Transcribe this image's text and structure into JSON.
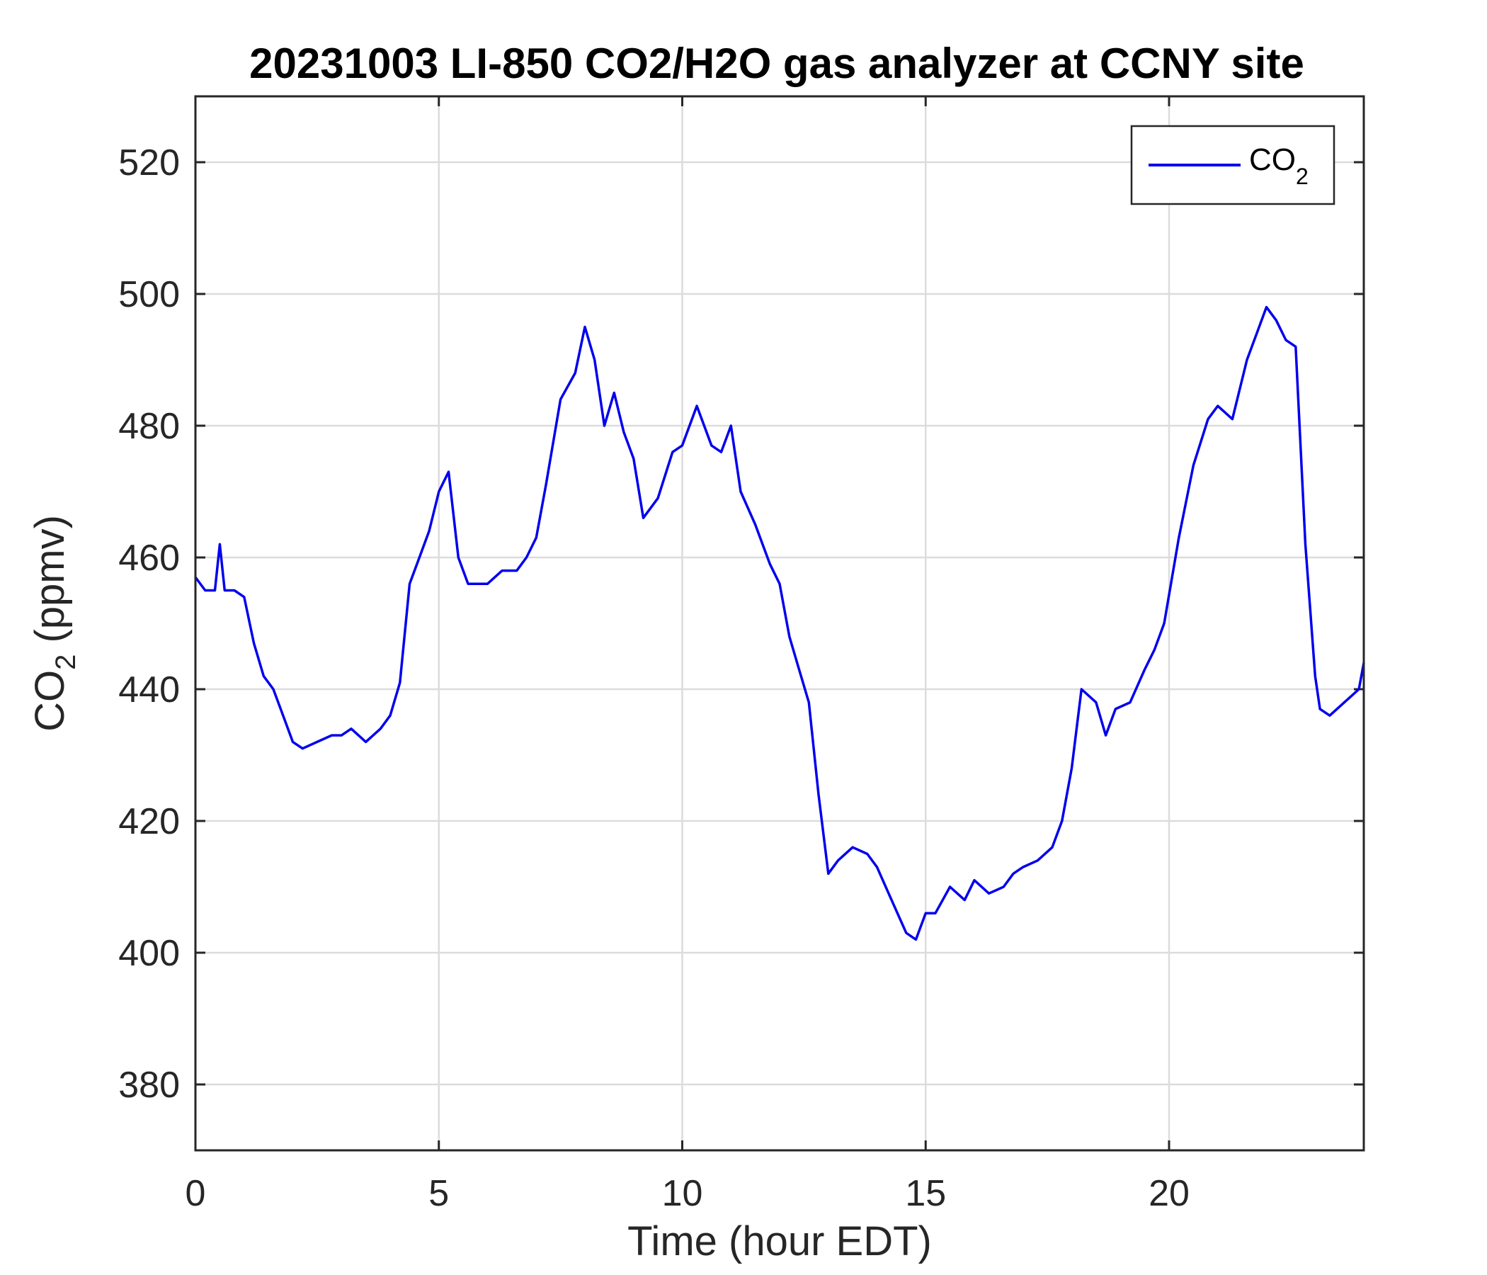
{
  "chart_data": {
    "type": "line",
    "title": "20231003 LI-850 CO2/H2O gas analyzer at CCNY site",
    "xlabel": "Time (hour EDT)",
    "ylabel_main": "CO",
    "ylabel_sub": "2",
    "ylabel_tail": " (ppmv)",
    "xlim": [
      0,
      24
    ],
    "ylim": [
      370,
      530
    ],
    "xticks": [
      0,
      5,
      10,
      15,
      20
    ],
    "yticks": [
      380,
      400,
      420,
      440,
      460,
      480,
      500,
      520
    ],
    "grid": true,
    "legend_position": "top-right",
    "legend": {
      "main": "CO",
      "sub": "2"
    },
    "series": [
      {
        "name": "CO2",
        "color": "#0000ee",
        "x": [
          0,
          0.2,
          0.4,
          0.5,
          0.6,
          0.8,
          1.0,
          1.2,
          1.4,
          1.6,
          1.8,
          2.0,
          2.2,
          2.5,
          2.8,
          3.0,
          3.2,
          3.5,
          3.8,
          4.0,
          4.2,
          4.4,
          4.6,
          4.8,
          5.0,
          5.2,
          5.4,
          5.6,
          5.8,
          6.0,
          6.3,
          6.6,
          6.8,
          7.0,
          7.2,
          7.5,
          7.8,
          8.0,
          8.2,
          8.4,
          8.6,
          8.8,
          9.0,
          9.2,
          9.5,
          9.8,
          10.0,
          10.3,
          10.6,
          10.8,
          11.0,
          11.2,
          11.5,
          11.8,
          12.0,
          12.2,
          12.4,
          12.6,
          12.8,
          13.0,
          13.2,
          13.5,
          13.8,
          14.0,
          14.3,
          14.6,
          14.8,
          15.0,
          15.2,
          15.5,
          15.8,
          16.0,
          16.3,
          16.6,
          16.8,
          17.0,
          17.3,
          17.6,
          17.8,
          18.0,
          18.2,
          18.5,
          18.7,
          18.9,
          19.2,
          19.5,
          19.7,
          19.9,
          20.2,
          20.5,
          20.8,
          21.0,
          21.3,
          21.6,
          21.8,
          22.0,
          22.2,
          22.4,
          22.6,
          22.8,
          22.9,
          23.0,
          23.1,
          23.3,
          23.6,
          23.9,
          24.0
        ],
        "y": [
          457,
          455,
          455,
          462,
          455,
          455,
          454,
          447,
          442,
          440,
          436,
          432,
          431,
          432,
          433,
          433,
          434,
          432,
          434,
          436,
          441,
          456,
          460,
          464,
          470,
          473,
          460,
          456,
          456,
          456,
          458,
          458,
          460,
          463,
          471,
          484,
          488,
          495,
          490,
          480,
          485,
          479,
          475,
          466,
          469,
          476,
          477,
          483,
          477,
          476,
          480,
          470,
          465,
          459,
          456,
          448,
          443,
          438,
          424,
          412,
          414,
          416,
          415,
          413,
          408,
          403,
          402,
          406,
          406,
          410,
          408,
          411,
          409,
          410,
          412,
          413,
          414,
          416,
          420,
          428,
          440,
          438,
          433,
          437,
          438,
          443,
          446,
          450,
          463,
          474,
          481,
          483,
          481,
          490,
          494,
          498,
          496,
          493,
          492,
          462,
          452,
          442,
          437,
          436,
          438,
          440,
          444
        ]
      }
    ]
  }
}
